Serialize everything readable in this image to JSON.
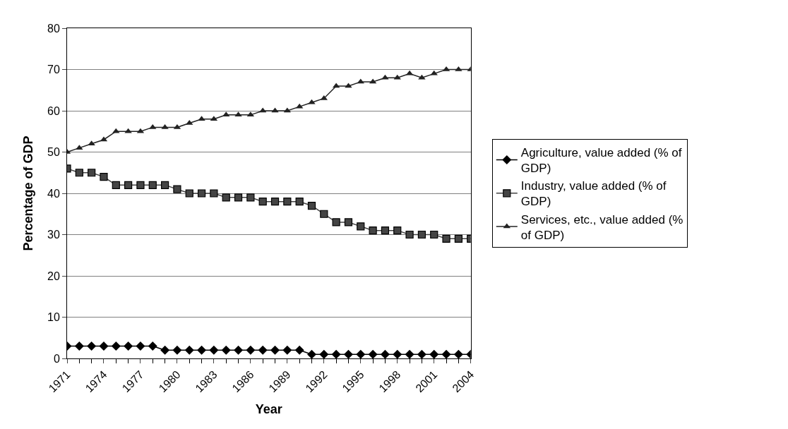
{
  "chart_data": {
    "type": "line",
    "xlabel": "Year",
    "ylabel": "Percentage of GDP",
    "categories": [
      "1971",
      null,
      null,
      "1974",
      null,
      null,
      "1977",
      null,
      null,
      "1980",
      null,
      null,
      "1983",
      null,
      null,
      "1986",
      null,
      null,
      "1989",
      null,
      null,
      "1992",
      null,
      null,
      "1995",
      null,
      null,
      "1998",
      null,
      null,
      "2001",
      null,
      null,
      "2004"
    ],
    "series": [
      {
        "name": "Agriculture, value added (% of GDP)",
        "color": "#000000",
        "marker": "diamond",
        "values": [
          3,
          3,
          3,
          3,
          3,
          3,
          3,
          3,
          2,
          2,
          2,
          2,
          2,
          2,
          2,
          2,
          2,
          2,
          2,
          2,
          1,
          1,
          1,
          1,
          1,
          1,
          1,
          1,
          1,
          1,
          1,
          1,
          1,
          1
        ]
      },
      {
        "name": "Industry, value added (% of GDP)",
        "color": "#444444",
        "marker": "square",
        "values": [
          46,
          45,
          45,
          44,
          42,
          42,
          42,
          42,
          42,
          41,
          40,
          40,
          40,
          39,
          39,
          39,
          38,
          38,
          38,
          38,
          37,
          35,
          33,
          33,
          32,
          31,
          31,
          31,
          30,
          30,
          30,
          29,
          29,
          29
        ]
      },
      {
        "name": "Services, etc., value added (% of GDP)",
        "color": "#222222",
        "marker": "triangle",
        "values": [
          50,
          51,
          52,
          53,
          55,
          55,
          55,
          56,
          56,
          56,
          57,
          58,
          58,
          59,
          59,
          59,
          60,
          60,
          60,
          61,
          62,
          63,
          66,
          66,
          67,
          67,
          68,
          68,
          69,
          68,
          69,
          70,
          70,
          70
        ]
      }
    ],
    "ylim": [
      0,
      80
    ],
    "yticks": [
      0,
      10,
      20,
      30,
      40,
      50,
      60,
      70,
      80
    ],
    "grid": "y",
    "legend": "right"
  }
}
